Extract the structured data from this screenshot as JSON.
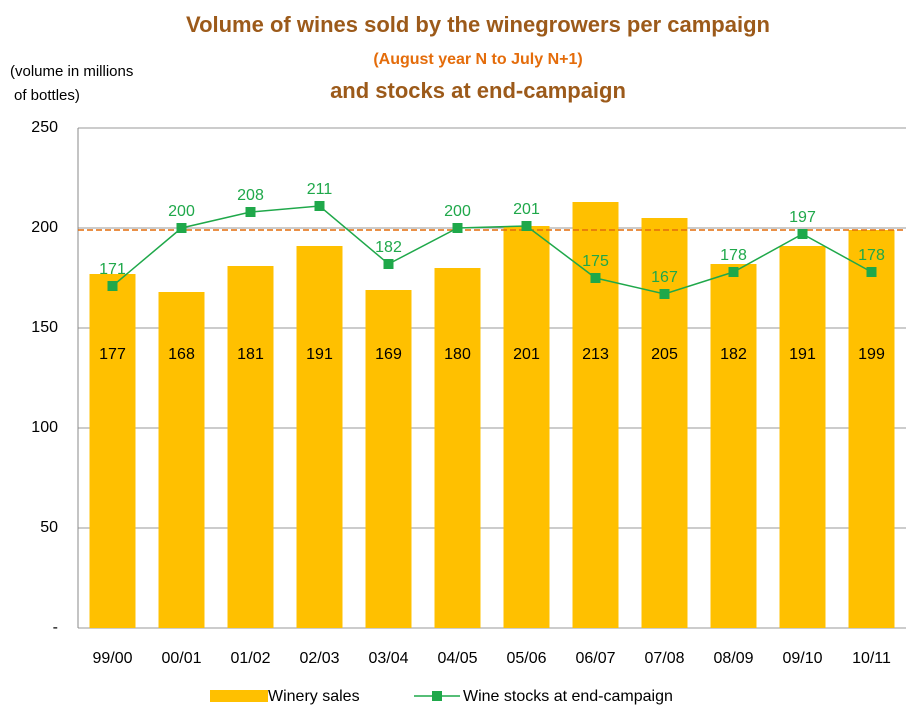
{
  "chart_data": {
    "type": "bar_line",
    "title": "Volume of wines sold by the winegrowers per campaign",
    "subtitle": "(August year N to July N+1)",
    "title_line2": "and stocks at end-campaign",
    "y_label": [
      "(volume in millions",
      "of bottles)"
    ],
    "categories": [
      "99/00",
      "00/01",
      "01/02",
      "02/03",
      "03/04",
      "04/05",
      "05/06",
      "06/07",
      "07/08",
      "08/09",
      "09/10",
      "10/11"
    ],
    "series": [
      {
        "name": "Winery sales",
        "type": "bar",
        "color": "#ffc000",
        "values": [
          177,
          168,
          181,
          191,
          169,
          180,
          201,
          213,
          205,
          182,
          191,
          199
        ]
      },
      {
        "name": "Wine stocks at end-campaign",
        "type": "line",
        "color": "#1fa84a",
        "values": [
          171,
          200,
          208,
          211,
          182,
          200,
          201,
          175,
          167,
          178,
          197,
          178
        ]
      }
    ],
    "reference_line": {
      "value": 199,
      "color": "#e46c0a"
    },
    "ylim": [
      0,
      250
    ],
    "yticks": [
      {
        "value": 0,
        "label": "-"
      },
      50,
      100,
      150,
      200,
      250
    ],
    "grid": true,
    "legend": "bottom"
  }
}
